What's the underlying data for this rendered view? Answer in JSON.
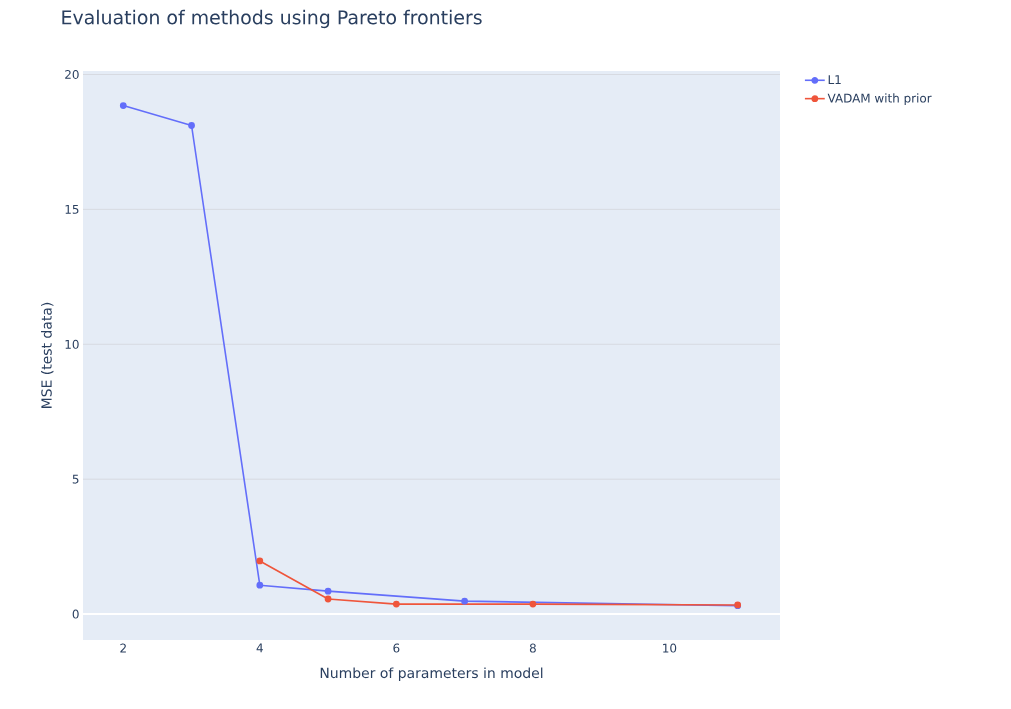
{
  "chart_data": {
    "type": "line",
    "title": "Evaluation of methods using Pareto frontiers",
    "xlabel": "Number of parameters in model",
    "ylabel": "MSE (test data)",
    "series": [
      {
        "name": "L1",
        "color": "#636efa",
        "x": [
          2,
          3,
          4,
          5,
          7,
          11
        ],
        "values": [
          18.85,
          18.11,
          1.07,
          0.85,
          0.48,
          0.31
        ]
      },
      {
        "name": "VADAM with prior",
        "color": "#ef553b",
        "x": [
          4,
          5,
          6,
          8,
          11
        ],
        "values": [
          1.97,
          0.56,
          0.37,
          0.37,
          0.34
        ]
      }
    ],
    "xlim": [
      1.41,
      11.62
    ],
    "ylim": [
      -0.96,
      20.13
    ],
    "xticks": [
      2,
      4,
      6,
      8,
      10
    ],
    "yticks": [
      0,
      5,
      10,
      15,
      20
    ],
    "grid": "y",
    "legend": "top right",
    "marker": "circle"
  }
}
